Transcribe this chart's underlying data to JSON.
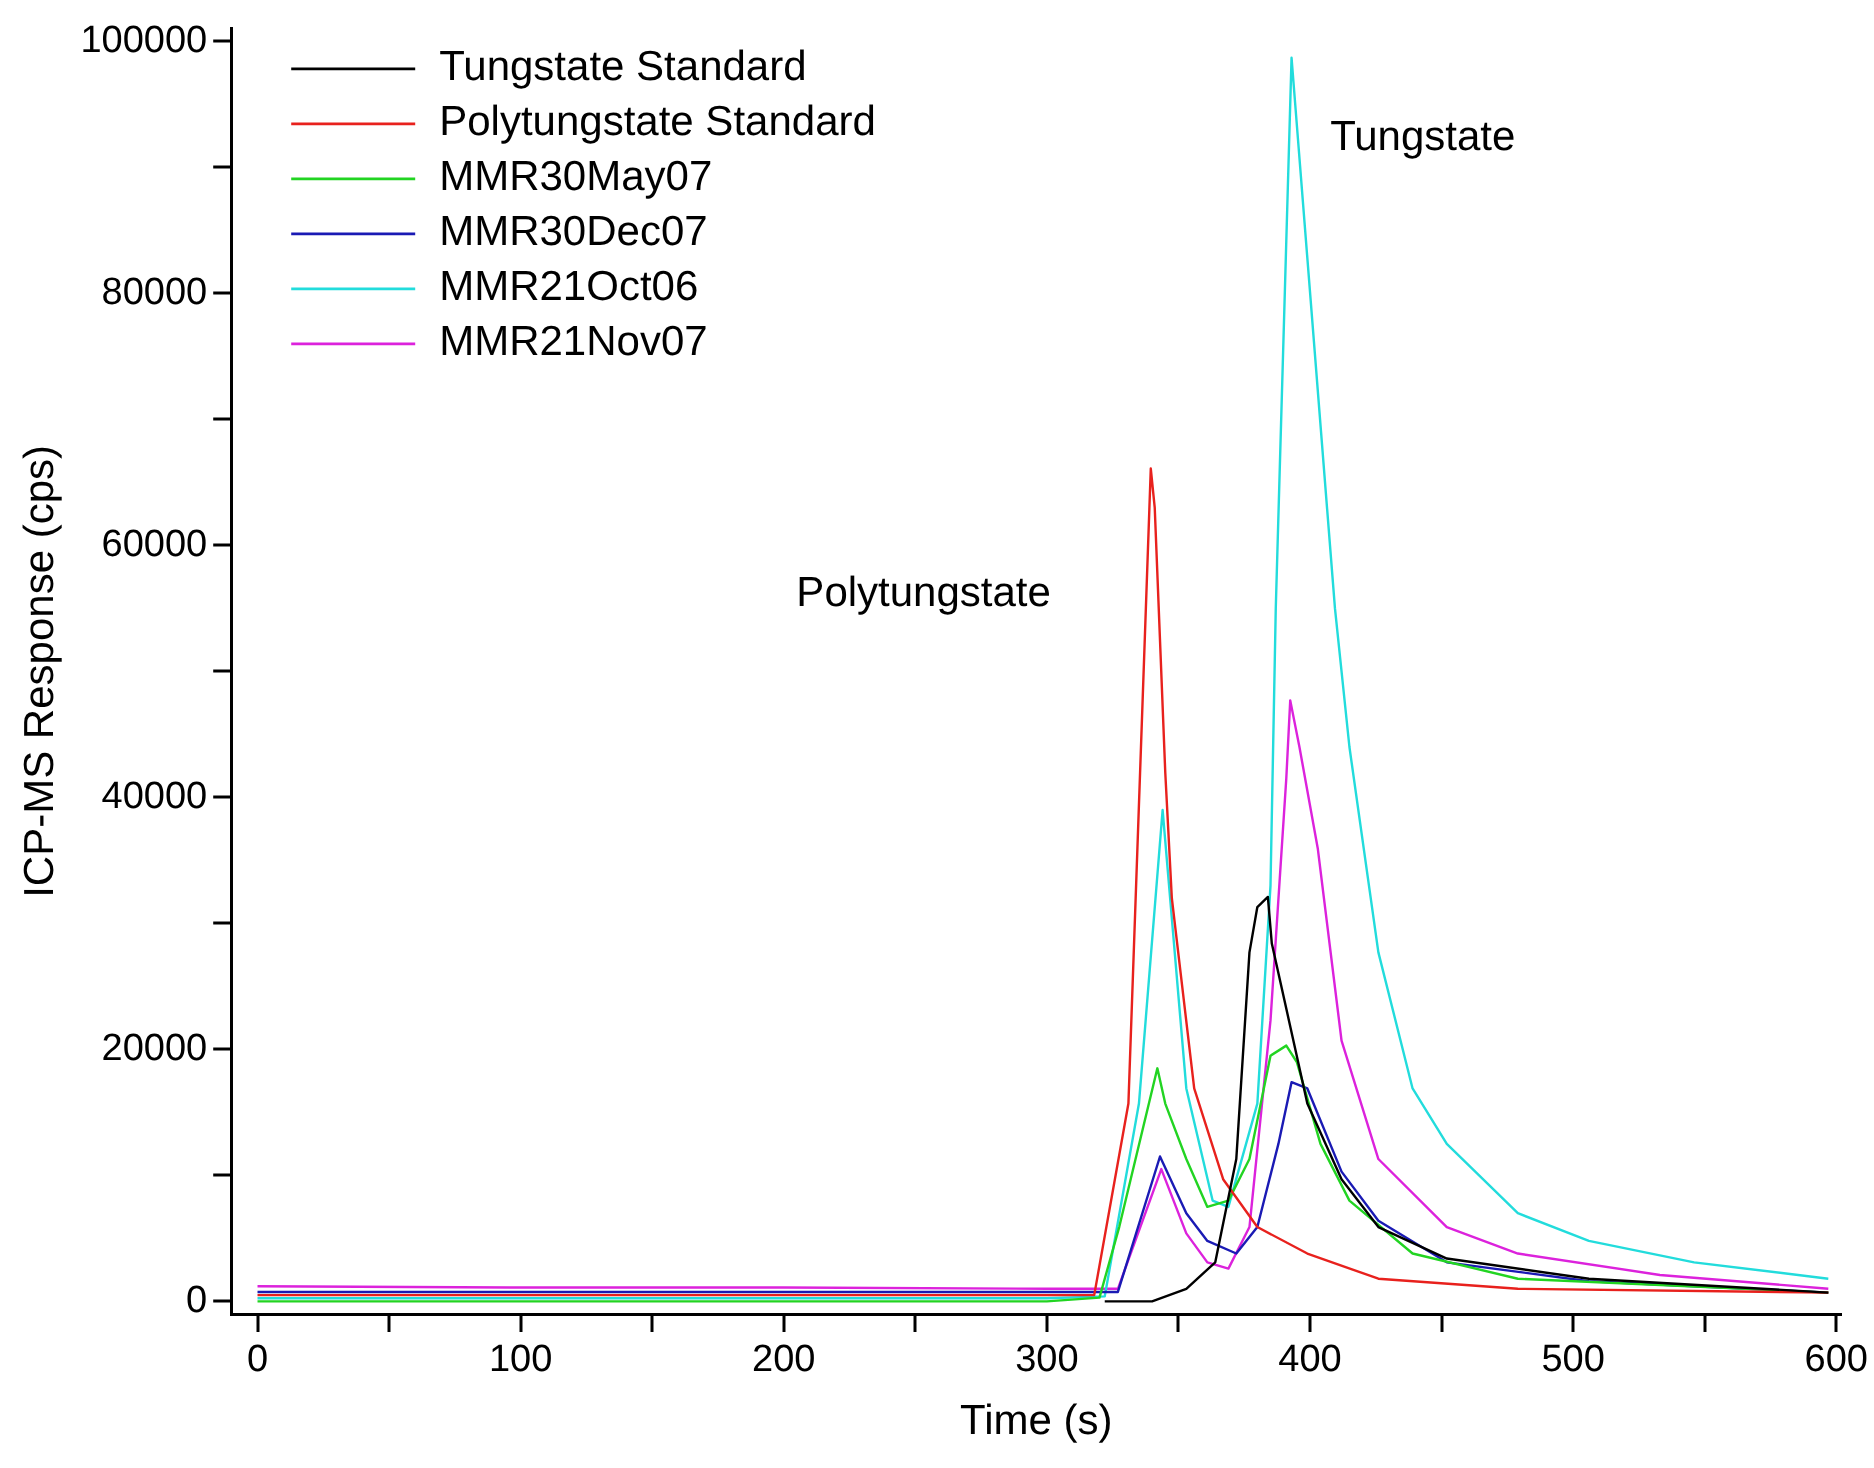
{
  "chart_data": {
    "type": "line",
    "xlabel": "Time (s)",
    "ylabel": "ICP-MS Response (cps)",
    "xlim": [
      -10,
      602
    ],
    "ylim": [
      -1000,
      101000
    ],
    "xticks": [
      0,
      {
        "value": 50,
        "label": null
      },
      100,
      {
        "value": 150,
        "label": null
      },
      200,
      {
        "value": 250,
        "label": null
      },
      300,
      {
        "value": 350,
        "label": null
      },
      400,
      {
        "value": 450,
        "label": null
      },
      500,
      {
        "value": 550,
        "label": null
      },
      600
    ],
    "yticks": [
      0,
      {
        "value": 10000,
        "label": null
      },
      20000,
      {
        "value": 30000,
        "label": null
      },
      40000,
      {
        "value": 50000,
        "label": null
      },
      60000,
      {
        "value": 70000,
        "label": null
      },
      80000,
      {
        "value": 90000,
        "label": null
      },
      100000
    ],
    "grid": false,
    "legend": "top left",
    "marker": "none",
    "line_style": "solid",
    "annotations": [
      "Polytungstate",
      "Tungstate"
    ],
    "series": [
      {
        "name": "Tungstate Standard",
        "color": "#000000",
        "x": [
          322,
          340,
          353,
          364,
          372,
          377,
          380,
          384,
          385.5,
          392,
          399,
          412,
          426,
          452,
          506,
          597
        ],
        "values": [
          0,
          0,
          1000,
          3100,
          11300,
          27700,
          31300,
          32100,
          28400,
          22300,
          15700,
          9700,
          5900,
          3400,
          1800,
          700
        ]
      },
      {
        "name": "Polytungstate Standard",
        "color": "#e8211d",
        "x": [
          0,
          100,
          200,
          300,
          318,
          331,
          339.5,
          341,
          345,
          347.5,
          356,
          367,
          380,
          399,
          426,
          479,
          597
        ],
        "values": [
          500,
          500,
          500,
          500,
          500,
          15700,
          66100,
          63000,
          42000,
          32000,
          16900,
          9700,
          5900,
          3800,
          1800,
          1000,
          700
        ]
      },
      {
        "name": "MMR30May07",
        "color": "#22d422",
        "x": [
          0,
          100,
          200,
          300,
          320,
          327.5,
          342,
          345,
          353,
          361,
          369,
          377,
          385,
          391,
          395,
          404,
          415,
          439,
          479,
          597
        ],
        "values": [
          0,
          0,
          0,
          0,
          300,
          5900,
          18500,
          15700,
          11300,
          7500,
          8000,
          11300,
          19500,
          20300,
          19000,
          12500,
          8000,
          3800,
          1800,
          700
        ]
      },
      {
        "name": "MMR30Dec07",
        "color": "#1a1ab4",
        "x": [
          0,
          100,
          200,
          300,
          327,
          343,
          353,
          361,
          372,
          380,
          388,
          393,
          399,
          412,
          426,
          452,
          506,
          597
        ],
        "values": [
          750,
          750,
          750,
          750,
          750,
          11500,
          7000,
          4800,
          3800,
          5900,
          12500,
          17400,
          16900,
          10300,
          6400,
          3100,
          1600,
          700
        ]
      },
      {
        "name": "MMR21Oct06",
        "color": "#22dcdc",
        "x": [
          0,
          100,
          200,
          300,
          322,
          335,
          344,
          353,
          363,
          369,
          380,
          385,
          387,
          393,
          409.5,
          415,
          426,
          439,
          452,
          479,
          506,
          546,
          597
        ],
        "values": [
          250,
          250,
          250,
          250,
          400,
          15700,
          39000,
          16900,
          8000,
          7500,
          15700,
          33000,
          55000,
          98700,
          55000,
          44000,
          27700,
          16900,
          12500,
          7000,
          4800,
          3100,
          1800
        ]
      },
      {
        "name": "MMR21Nov07",
        "color": "#dc22dc",
        "x": [
          0,
          100,
          200,
          300,
          327,
          343.5,
          353,
          361,
          369,
          377,
          385,
          391,
          392.5,
          396,
          403,
          412,
          426,
          452,
          479,
          533,
          597
        ],
        "values": [
          1200,
          1100,
          1100,
          1000,
          1000,
          10500,
          5400,
          3100,
          2600,
          5900,
          22300,
          41500,
          47700,
          44000,
          35900,
          20700,
          11300,
          5900,
          3800,
          2100,
          1000
        ]
      }
    ]
  }
}
